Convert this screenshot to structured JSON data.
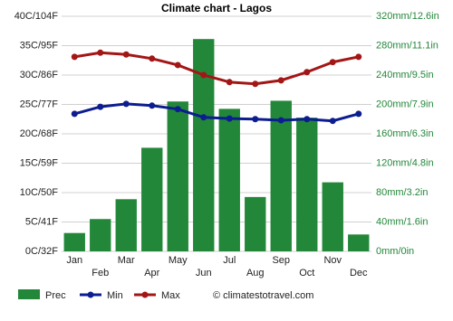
{
  "chart_data": {
    "type": "combo",
    "title": "Climate chart - Lagos",
    "categories": [
      "Jan",
      "Feb",
      "Mar",
      "Apr",
      "May",
      "Jun",
      "Jul",
      "Aug",
      "Sep",
      "Oct",
      "Nov",
      "Dec"
    ],
    "series": [
      {
        "name": "Prec",
        "type": "bar",
        "axis": "y2",
        "color": "#23873a",
        "values": [
          25,
          44,
          71,
          141,
          204,
          289,
          194,
          74,
          205,
          182,
          94,
          23
        ]
      },
      {
        "name": "Min",
        "type": "line",
        "color": "#0c1d8f",
        "values": [
          23.4,
          24.6,
          25.1,
          24.8,
          24.2,
          22.8,
          22.6,
          22.5,
          22.3,
          22.5,
          22.2,
          23.4
        ]
      },
      {
        "name": "Max",
        "type": "line",
        "color": "#a31616",
        "values": [
          33.1,
          33.8,
          33.5,
          32.8,
          31.7,
          30,
          28.8,
          28.5,
          29.1,
          30.5,
          32.2,
          33.1
        ]
      }
    ],
    "ylim": [
      0,
      40
    ],
    "yticks": [
      {
        "value": 0,
        "label": "0C/32F"
      },
      {
        "value": 5,
        "label": "5C/41F"
      },
      {
        "value": 10,
        "label": "10C/50F"
      },
      {
        "value": 15,
        "label": "15C/59F"
      },
      {
        "value": 20,
        "label": "20C/68F"
      },
      {
        "value": 25,
        "label": "25C/77F"
      },
      {
        "value": 30,
        "label": "30C/86F"
      },
      {
        "value": 35,
        "label": "35C/95F"
      },
      {
        "value": 40,
        "label": "40C/104F"
      }
    ],
    "y2lim": [
      0,
      320
    ],
    "y2ticks": [
      {
        "value": 0,
        "label": "0mm/0in"
      },
      {
        "value": 40,
        "label": "40mm/1.6in"
      },
      {
        "value": 80,
        "label": "80mm/3.2in"
      },
      {
        "value": 120,
        "label": "120mm/4.8in"
      },
      {
        "value": 160,
        "label": "160mm/6.3in"
      },
      {
        "value": 200,
        "label": "200mm/7.9in"
      },
      {
        "value": 240,
        "label": "240mm/9.5in"
      },
      {
        "value": 280,
        "label": "280mm/11.1in"
      },
      {
        "value": 320,
        "label": "320mm/12.6in"
      }
    ],
    "grid": true,
    "watermark": "© climatestotravel.com"
  }
}
